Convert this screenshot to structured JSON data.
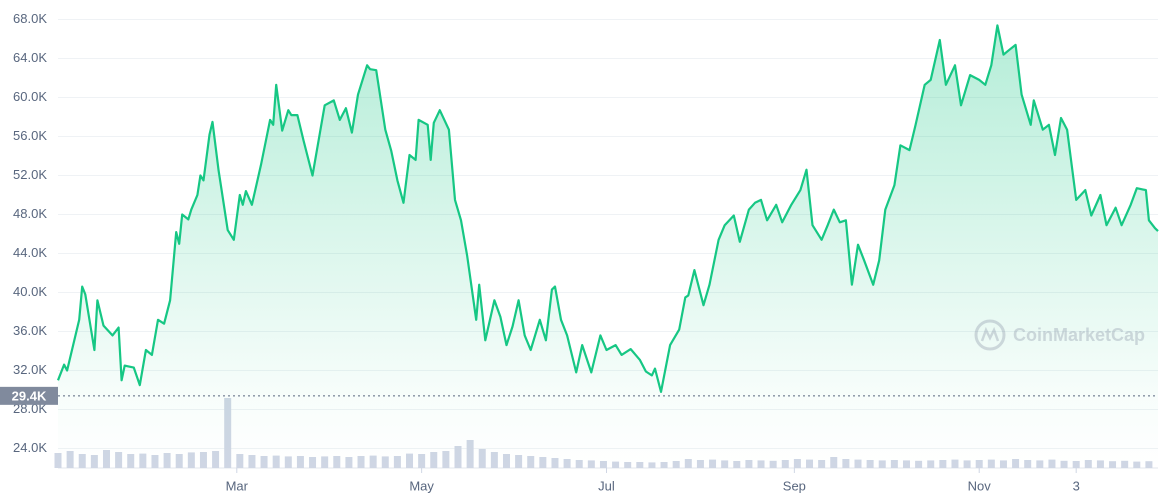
{
  "chart_data": {
    "type": "line",
    "xlim": [
      0,
      363
    ],
    "xticks": [
      {
        "value": 59,
        "label": "Mar"
      },
      {
        "value": 120,
        "label": "May"
      },
      {
        "value": 181,
        "label": "Jul"
      },
      {
        "value": 243,
        "label": "Sep"
      },
      {
        "value": 304,
        "label": "Nov"
      },
      {
        "value": 336,
        "label": "3"
      }
    ],
    "ylim": [
      22000,
      70000
    ],
    "yticks": [
      {
        "value": 24000,
        "label": "24.0K"
      },
      {
        "value": 28000,
        "label": "28.0K"
      },
      {
        "value": 32000,
        "label": "32.0K"
      },
      {
        "value": 36000,
        "label": "36.0K"
      },
      {
        "value": 40000,
        "label": "40.0K"
      },
      {
        "value": 44000,
        "label": "44.0K"
      },
      {
        "value": 48000,
        "label": "48.0K"
      },
      {
        "value": 52000,
        "label": "52.0K"
      },
      {
        "value": 56000,
        "label": "56.0K"
      },
      {
        "value": 60000,
        "label": "60.0K"
      },
      {
        "value": 64000,
        "label": "64.0K"
      },
      {
        "value": 68000,
        "label": "68.0K"
      }
    ],
    "grid": true,
    "reference": {
      "value": 29400,
      "label": "29.4K"
    },
    "watermark": "CoinMarketCap",
    "x": [
      0,
      2,
      3,
      7,
      8,
      9,
      12,
      13,
      15,
      18,
      20,
      21,
      22,
      25,
      27,
      29,
      31,
      33,
      35,
      37,
      39,
      40,
      41,
      43,
      44,
      46,
      47,
      48,
      50,
      51,
      53,
      54,
      56,
      58,
      60,
      61,
      62,
      64,
      67,
      70,
      71,
      72,
      74,
      76,
      77,
      79,
      81,
      84,
      86,
      88,
      91,
      93,
      95,
      97,
      99,
      102,
      103,
      105,
      106,
      108,
      110,
      112,
      114,
      116,
      118,
      119,
      122,
      123,
      124,
      126,
      129,
      131,
      133,
      135,
      138,
      139,
      141,
      144,
      146,
      148,
      150,
      152,
      154,
      156,
      159,
      161,
      163,
      164,
      166,
      168,
      171,
      173,
      176,
      179,
      181,
      184,
      186,
      189,
      192,
      194,
      196,
      197,
      199,
      202,
      205,
      207,
      208,
      210,
      213,
      215,
      218,
      220,
      223,
      225,
      228,
      230,
      232,
      234,
      237,
      239,
      242,
      245,
      247,
      249,
      252,
      254,
      256,
      258,
      260,
      262,
      264,
      266,
      269,
      271,
      273,
      276,
      278,
      281,
      283,
      286,
      288,
      291,
      293,
      296,
      298,
      301,
      304,
      306,
      308,
      310,
      312,
      314,
      316,
      318,
      321,
      322,
      325,
      327,
      329,
      331,
      333,
      336,
      339,
      341,
      344,
      346,
      349,
      351,
      354,
      356,
      359,
      360,
      362,
      363
    ],
    "series": [
      {
        "color": "#16c784",
        "values": [
          31000,
          32600,
          32000,
          37200,
          40600,
          39800,
          34100,
          39200,
          36600,
          35600,
          36400,
          31000,
          32500,
          32300,
          30500,
          34100,
          33600,
          37200,
          36800,
          39200,
          46200,
          45000,
          48000,
          47500,
          48500,
          50000,
          52000,
          51500,
          56200,
          57500,
          52500,
          50500,
          46400,
          45400,
          50000,
          49000,
          50400,
          49000,
          53100,
          57700,
          57200,
          61300,
          56600,
          58700,
          58200,
          58200,
          55600,
          52000,
          55600,
          59200,
          59700,
          57700,
          58900,
          56400,
          60300,
          63300,
          62900,
          62800,
          60800,
          56700,
          54500,
          51500,
          49200,
          54100,
          53600,
          57700,
          57200,
          53600,
          57400,
          58700,
          56700,
          49500,
          47400,
          43800,
          37200,
          40800,
          35100,
          39200,
          37500,
          34600,
          36500,
          39200,
          35600,
          34100,
          37200,
          35100,
          40300,
          40600,
          37200,
          35600,
          31800,
          34600,
          31800,
          35600,
          34100,
          34600,
          33600,
          34200,
          33100,
          31900,
          31500,
          32200,
          29800,
          34600,
          36200,
          39500,
          39700,
          42300,
          38700,
          40800,
          45400,
          46900,
          47900,
          45200,
          48500,
          49200,
          49500,
          47400,
          49000,
          47200,
          49000,
          50500,
          52600,
          46900,
          45400,
          46900,
          48500,
          47200,
          47400,
          40800,
          44900,
          43300,
          40800,
          43300,
          48500,
          51000,
          55100,
          54600,
          57200,
          61300,
          61800,
          65900,
          61300,
          63300,
          59200,
          62300,
          61800,
          61300,
          63300,
          67400,
          64400,
          64900,
          65400,
          60300,
          57200,
          59700,
          56700,
          57200,
          54100,
          57900,
          56700,
          49500,
          50500,
          47900,
          50000,
          46900,
          48700,
          46900,
          49000,
          50700,
          50500,
          47400,
          46600,
          46300
        ]
      }
    ],
    "volume": {
      "color": "#cfd6e4",
      "vlim": [
        0,
        500
      ],
      "x": [
        0,
        4,
        8,
        12,
        16,
        20,
        24,
        28,
        32,
        36,
        40,
        44,
        48,
        52,
        56,
        60,
        64,
        68,
        72,
        76,
        80,
        84,
        88,
        92,
        96,
        100,
        104,
        108,
        112,
        116,
        120,
        124,
        128,
        132,
        136,
        140,
        144,
        148,
        152,
        156,
        160,
        164,
        168,
        172,
        176,
        180,
        184,
        188,
        192,
        196,
        200,
        204,
        208,
        212,
        216,
        220,
        224,
        228,
        232,
        236,
        240,
        244,
        248,
        252,
        256,
        260,
        264,
        268,
        272,
        276,
        280,
        284,
        288,
        292,
        296,
        300,
        304,
        308,
        312,
        316,
        320,
        324,
        328,
        332,
        336,
        340,
        344,
        348,
        352,
        356,
        360
      ],
      "values": [
        75,
        85,
        70,
        65,
        90,
        80,
        70,
        72,
        65,
        75,
        70,
        78,
        80,
        85,
        350,
        70,
        65,
        60,
        62,
        58,
        60,
        55,
        58,
        60,
        55,
        60,
        62,
        58,
        60,
        72,
        70,
        80,
        85,
        110,
        140,
        95,
        80,
        70,
        65,
        60,
        55,
        50,
        45,
        40,
        38,
        35,
        32,
        30,
        30,
        28,
        30,
        35,
        45,
        40,
        42,
        38,
        35,
        40,
        38,
        36,
        40,
        45,
        42,
        40,
        55,
        45,
        42,
        40,
        38,
        40,
        38,
        36,
        38,
        40,
        42,
        38,
        40,
        42,
        38,
        45,
        40,
        38,
        42,
        36,
        35,
        40,
        38,
        34,
        36,
        32,
        34
      ]
    }
  }
}
